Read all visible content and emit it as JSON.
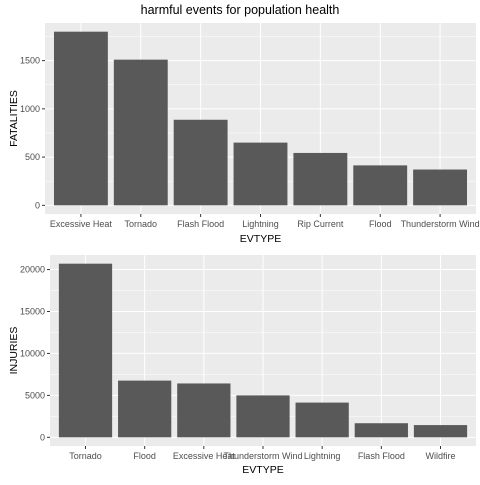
{
  "title": "harmful events for population health",
  "colors": {
    "panel_bg": "#ebebeb",
    "grid_major": "#ffffff",
    "bar_fill": "#595959",
    "tick_text": "#4d4d4d",
    "tick_mark": "#333333"
  },
  "chart_data": [
    {
      "type": "bar",
      "xlabel": "EVTYPE",
      "ylabel": "FATALITIES",
      "categories": [
        "Excessive Heat",
        "Tornado",
        "Flash Flood",
        "Lightning",
        "Rip Current",
        "Flood",
        "Thunderstorm Wind"
      ],
      "values": [
        1800,
        1510,
        887,
        650,
        543,
        414,
        371
      ],
      "ylim": [
        0,
        1800
      ],
      "yticks": [
        0,
        500,
        1000,
        1500
      ],
      "grid": true,
      "legend": "none"
    },
    {
      "type": "bar",
      "xlabel": "EVTYPE",
      "ylabel": "INJURIES",
      "categories": [
        "Tornado",
        "Flood",
        "Excessive Heat",
        "Thunderstorm Wind",
        "Lightning",
        "Flash Flood",
        "Wildfire"
      ],
      "values": [
        20700,
        6760,
        6420,
        5000,
        4140,
        1680,
        1460
      ],
      "ylim": [
        0,
        20700
      ],
      "yticks": [
        0,
        5000,
        10000,
        15000,
        20000
      ],
      "grid": true,
      "legend": "none"
    }
  ]
}
